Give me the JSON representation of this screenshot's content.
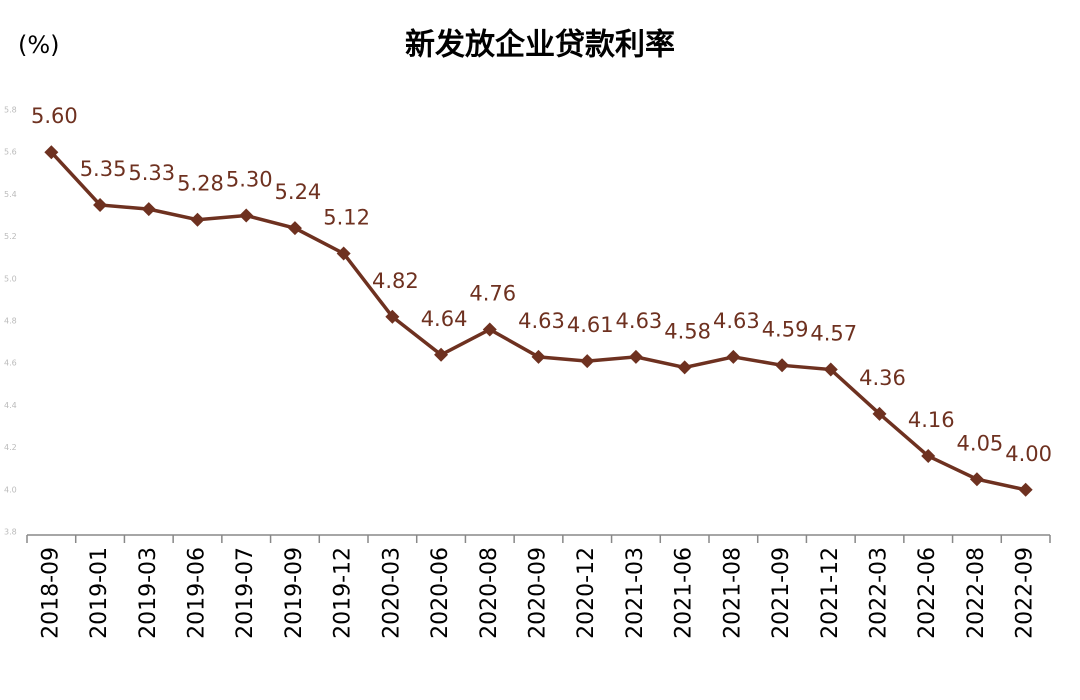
{
  "chart_data": {
    "type": "line",
    "title": "新发放企业贷款利率",
    "y_label": "(%)",
    "categories": [
      "2018-09",
      "2019-01",
      "2019-03",
      "2019-06",
      "2019-07",
      "2019-09",
      "2019-12",
      "2020-03",
      "2020-06",
      "2020-08",
      "2020-09",
      "2020-12",
      "2021-03",
      "2021-06",
      "2021-08",
      "2021-09",
      "2021-12",
      "2022-03",
      "2022-06",
      "2022-08",
      "2022-09"
    ],
    "series": [
      {
        "name": "新发放企业贷款利率",
        "color": "#6e3120",
        "values": [
          5.6,
          5.35,
          5.33,
          5.28,
          5.3,
          5.24,
          5.12,
          4.82,
          4.64,
          4.76,
          4.63,
          4.61,
          4.63,
          4.58,
          4.63,
          4.59,
          4.57,
          4.36,
          4.16,
          4.05,
          4.0
        ],
        "value_labels": [
          "5.60",
          "5.35",
          "5.33",
          "5.28",
          "5.30",
          "5.24",
          "5.12",
          "4.82",
          "4.64",
          "4.76",
          "4.63",
          "4.61",
          "4.63",
          "4.58",
          "4.63",
          "4.59",
          "4.57",
          "4.36",
          "4.16",
          "4.05",
          "4.00"
        ]
      }
    ],
    "ylim": [
      3.8,
      5.8
    ],
    "yticks": [
      3.8,
      {
        "value": 4,
        "label": "4.0"
      },
      4.2,
      4.4,
      4.6,
      4.8,
      {
        "value": 5,
        "label": "5.0"
      },
      5.2,
      5.4,
      5.6,
      5.8
    ],
    "grid": false
  }
}
